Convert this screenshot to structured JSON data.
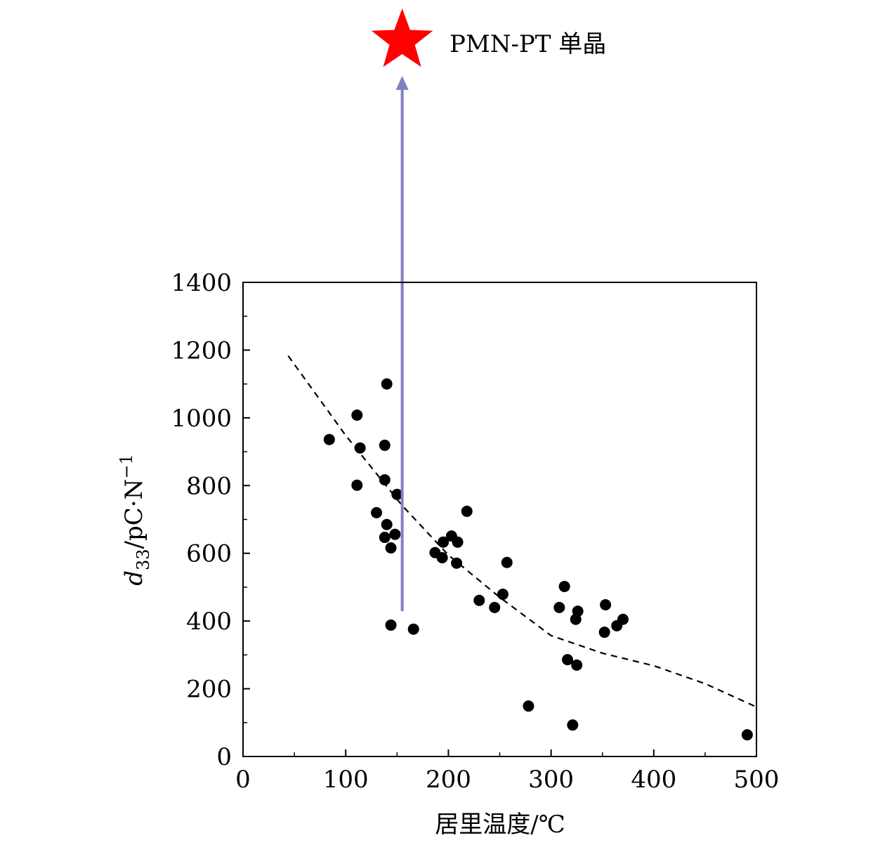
{
  "chart_data": {
    "type": "scatter",
    "xlabel": "居里温度/℃",
    "ylabel_main": "d",
    "ylabel_sub": "33",
    "ylabel_rest": "/pC·N",
    "ylabel_sup": "−1",
    "xlim": [
      0,
      500
    ],
    "ylim": [
      0,
      1400
    ],
    "xticks": [
      0,
      100,
      200,
      300,
      400,
      500
    ],
    "yticks": [
      0,
      200,
      400,
      600,
      800,
      1000,
      1200,
      1400
    ],
    "grid": false,
    "points": [
      [
        84,
        936
      ],
      [
        111,
        1008
      ],
      [
        114,
        911
      ],
      [
        111,
        801
      ],
      [
        140,
        1100
      ],
      [
        138,
        919
      ],
      [
        138,
        817
      ],
      [
        150,
        774
      ],
      [
        130,
        720
      ],
      [
        140,
        685
      ],
      [
        138,
        647
      ],
      [
        148,
        656
      ],
      [
        144,
        616
      ],
      [
        144,
        388
      ],
      [
        166,
        376
      ],
      [
        218,
        724
      ],
      [
        187,
        602
      ],
      [
        195,
        633
      ],
      [
        203,
        651
      ],
      [
        209,
        633
      ],
      [
        194,
        587
      ],
      [
        208,
        571
      ],
      [
        230,
        461
      ],
      [
        257,
        573
      ],
      [
        253,
        479
      ],
      [
        245,
        440
      ],
      [
        278,
        149
      ],
      [
        313,
        502
      ],
      [
        308,
        440
      ],
      [
        326,
        429
      ],
      [
        324,
        405
      ],
      [
        316,
        286
      ],
      [
        325,
        270
      ],
      [
        321,
        93
      ],
      [
        353,
        448
      ],
      [
        352,
        367
      ],
      [
        364,
        386
      ],
      [
        370,
        405
      ],
      [
        491,
        64
      ]
    ],
    "trend_line": [
      [
        44,
        1183
      ],
      [
        100,
        948
      ],
      [
        155,
        741
      ],
      [
        200,
        595
      ],
      [
        250,
        470
      ],
      [
        300,
        357
      ],
      [
        350,
        305
      ],
      [
        400,
        268
      ],
      [
        450,
        215
      ],
      [
        498,
        149
      ]
    ],
    "arrow": {
      "x": 155,
      "y_start": 429,
      "color": "#8080c0"
    },
    "annotation": {
      "label": "PMN-PT 单晶",
      "marker": "star",
      "color": "#ff0000"
    }
  }
}
